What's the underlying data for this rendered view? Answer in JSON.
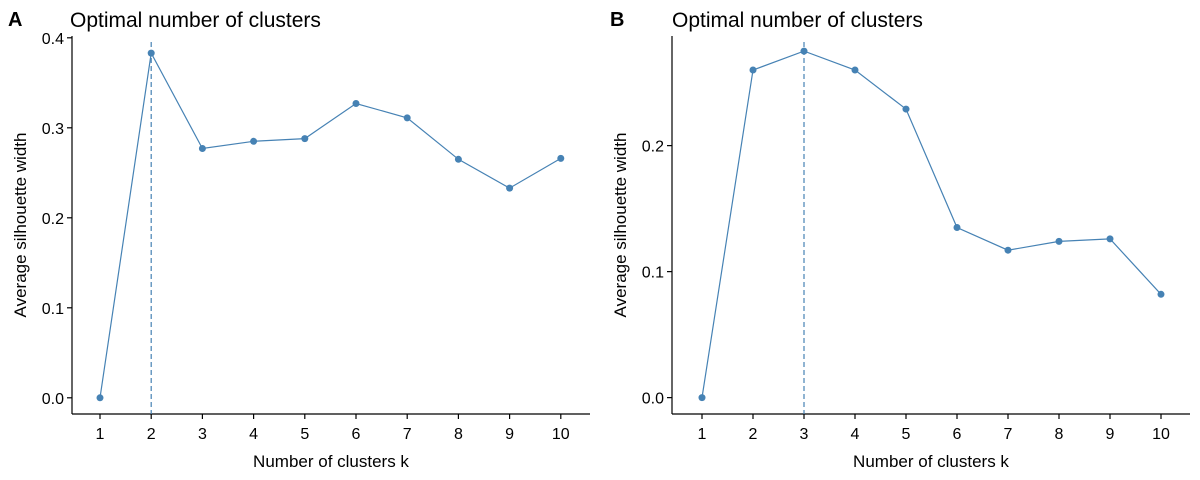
{
  "chart_data": [
    {
      "panel_label": "A",
      "type": "line",
      "title": "Optimal number of clusters",
      "xlabel": "Number of clusters k",
      "ylabel": "Average silhouette width",
      "categories": [
        "1",
        "2",
        "3",
        "4",
        "5",
        "6",
        "7",
        "8",
        "9",
        "10"
      ],
      "x": [
        1,
        2,
        3,
        4,
        5,
        6,
        7,
        8,
        9,
        10
      ],
      "values": [
        0.0,
        0.383,
        0.277,
        0.285,
        0.288,
        0.327,
        0.311,
        0.265,
        0.233,
        0.266
      ],
      "optimal_k": 2,
      "yticks": [
        0.0,
        0.1,
        0.2,
        0.3,
        0.4
      ],
      "ytick_labels": [
        "0.0",
        "0.1",
        "0.2",
        "0.3",
        "0.4"
      ],
      "ylim": [
        -0.018,
        0.402
      ],
      "grid": false,
      "color": "#4682b4"
    },
    {
      "panel_label": "B",
      "type": "line",
      "title": "Optimal number of clusters",
      "xlabel": "Number of clusters k",
      "ylabel": "Average silhouette width",
      "categories": [
        "1",
        "2",
        "3",
        "4",
        "5",
        "6",
        "7",
        "8",
        "9",
        "10"
      ],
      "x": [
        1,
        2,
        3,
        4,
        5,
        6,
        7,
        8,
        9,
        10
      ],
      "values": [
        0.0,
        0.26,
        0.275,
        0.26,
        0.229,
        0.135,
        0.117,
        0.124,
        0.126,
        0.082
      ],
      "optimal_k": 3,
      "yticks": [
        0.0,
        0.1,
        0.2
      ],
      "ytick_labels": [
        "0.0",
        "0.1",
        "0.2"
      ],
      "ylim": [
        -0.013,
        0.287
      ],
      "grid": false,
      "color": "#4682b4"
    }
  ]
}
